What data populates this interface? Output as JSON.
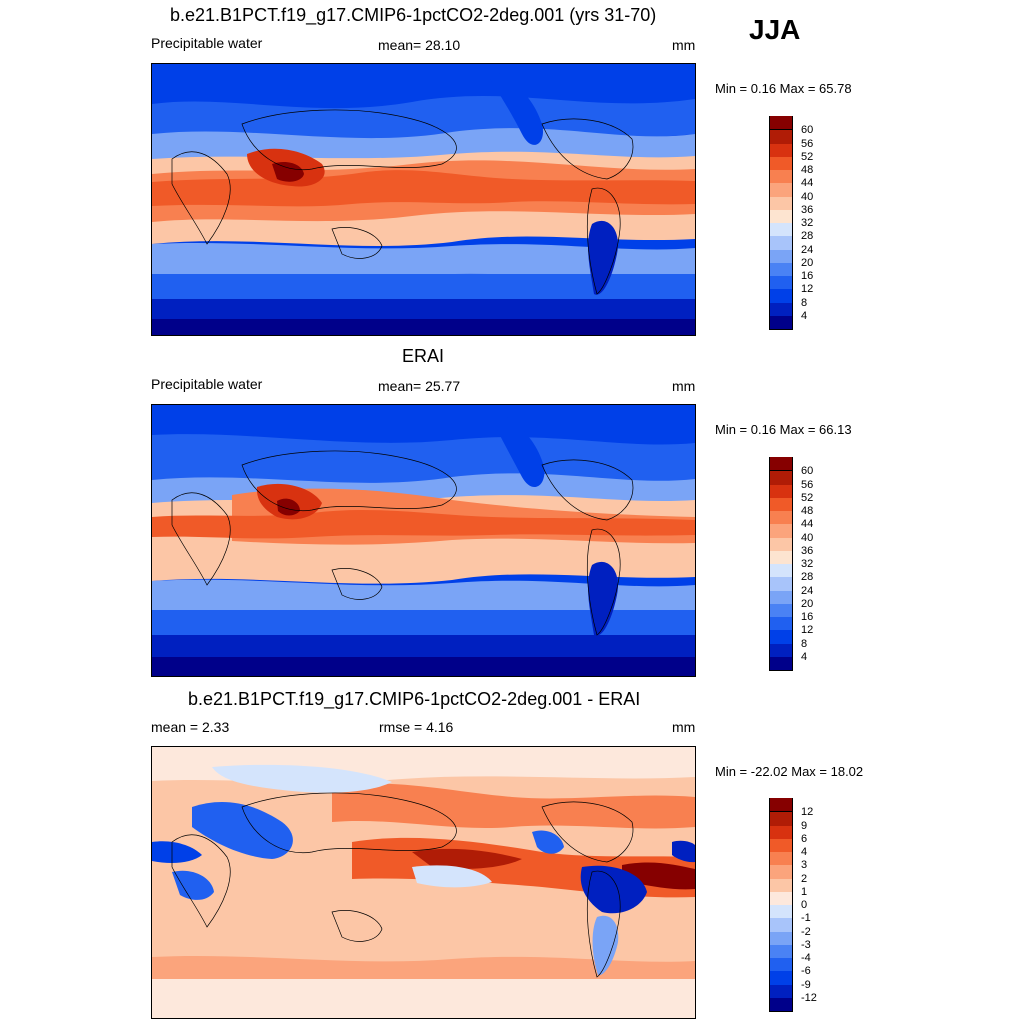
{
  "season": "JJA",
  "panels": [
    {
      "title": "b.e21.B1PCT.f19_g17.CMIP6-1pctCO2-2deg.001 (yrs 31-70)",
      "left_label": "Precipitable water",
      "center_label": "mean=  28.10",
      "unit": "mm",
      "minmax": "Min =   0.16 Max =  65.78",
      "levels": [
        "4",
        "8",
        "12",
        "16",
        "20",
        "24",
        "28",
        "32",
        "36",
        "40",
        "44",
        "48",
        "52",
        "56",
        "60"
      ],
      "colors": [
        "#00008a",
        "#0020c0",
        "#0040e8",
        "#2060f0",
        "#4a82f4",
        "#7aa4f6",
        "#a8c4fa",
        "#d4e4fc",
        "#fde4d0",
        "#fcc6a6",
        "#fba47c",
        "#f88050",
        "#f05a28",
        "#d83210",
        "#b01c06",
        "#860000"
      ]
    },
    {
      "title": "ERAI",
      "left_label": "Precipitable water",
      "center_label": "mean=  25.77",
      "unit": "mm",
      "minmax": "Min =   0.16 Max =  66.13",
      "levels": [
        "4",
        "8",
        "12",
        "16",
        "20",
        "24",
        "28",
        "32",
        "36",
        "40",
        "44",
        "48",
        "52",
        "56",
        "60"
      ],
      "colors": [
        "#00008a",
        "#0020c0",
        "#0040e8",
        "#2060f0",
        "#4a82f4",
        "#7aa4f6",
        "#a8c4fa",
        "#d4e4fc",
        "#fde4d0",
        "#fcc6a6",
        "#fba47c",
        "#f88050",
        "#f05a28",
        "#d83210",
        "#b01c06",
        "#860000"
      ]
    },
    {
      "title": "b.e21.B1PCT.f19_g17.CMIP6-1pctCO2-2deg.001 - ERAI",
      "left_label": "mean =   2.33",
      "center_label": "rmse =   4.16",
      "unit": "mm",
      "minmax": "Min = -22.02 Max =  18.02",
      "levels": [
        "-12",
        "-9",
        "-6",
        "-4",
        "-3",
        "-2",
        "-1",
        "0",
        "1",
        "2",
        "3",
        "4",
        "6",
        "9",
        "12"
      ],
      "colors": [
        "#00008a",
        "#0020c0",
        "#0040e8",
        "#2060f0",
        "#4a82f4",
        "#7aa4f6",
        "#a8c4fa",
        "#d4e4fc",
        "#fde8dc",
        "#fcc6a6",
        "#fba47c",
        "#f88050",
        "#f05a28",
        "#d83210",
        "#b01c06",
        "#860000"
      ]
    }
  ]
}
